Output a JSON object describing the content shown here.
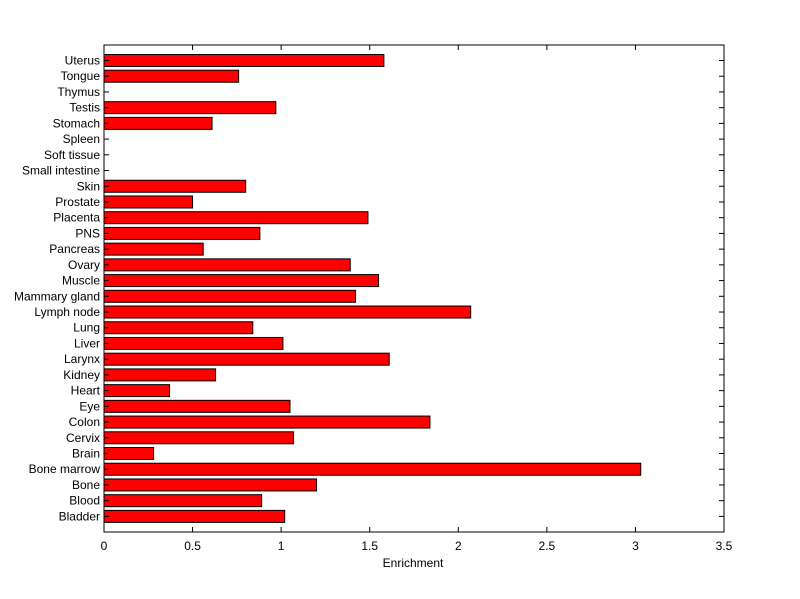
{
  "chart_data": {
    "type": "bar",
    "orientation": "horizontal",
    "title": "",
    "xlabel": "Enrichment",
    "ylabel": "",
    "xlim": [
      0,
      3.5
    ],
    "xticks": [
      "0",
      "0.5",
      "1",
      "1.5",
      "2",
      "2.5",
      "3",
      "3.5"
    ],
    "grid": false,
    "bar_color": "#ff0000",
    "categories": [
      "Uterus",
      "Tongue",
      "Thymus",
      "Testis",
      "Stomach",
      "Spleen",
      "Soft tissue",
      "Small intestine",
      "Skin",
      "Prostate",
      "Placenta",
      "PNS",
      "Pancreas",
      "Ovary",
      "Muscle",
      "Mammary gland",
      "Lymph node",
      "Lung",
      "Liver",
      "Larynx",
      "Kidney",
      "Heart",
      "Eye",
      "Colon",
      "Cervix",
      "Brain",
      "Bone marrow",
      "Bone",
      "Blood",
      "Bladder"
    ],
    "values": [
      1.58,
      0.76,
      0,
      0.97,
      0.61,
      0,
      0,
      0,
      0.8,
      0.5,
      1.49,
      0.88,
      0.56,
      1.39,
      1.55,
      1.42,
      2.07,
      0.84,
      1.01,
      1.61,
      0.63,
      0.37,
      1.05,
      1.84,
      1.07,
      0.28,
      3.03,
      1.2,
      0.89,
      1.02
    ]
  }
}
